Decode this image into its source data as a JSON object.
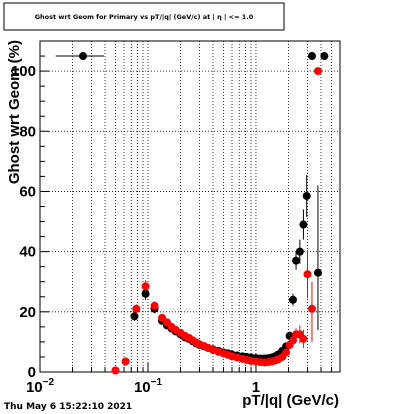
{
  "chart_data": {
    "type": "scatter",
    "title": "Ghost wrt Geom for Primary vs pT/|q| (GeV/c) at | η | <= 1.0",
    "xlabel": "pT/|q| (GeV/c)",
    "ylabel": "Ghost wrt Geom (%)",
    "xscale": "log",
    "xlim": [
      0.01,
      6
    ],
    "ylim": [
      0,
      110
    ],
    "grid": true,
    "x_ticks": [
      {
        "value": 0.01,
        "label": "10",
        "sup": "−2"
      },
      {
        "value": 0.1,
        "label": "10",
        "sup": "−1"
      },
      {
        "value": 1,
        "label": "1",
        "sup": ""
      }
    ],
    "y_ticks": [
      {
        "value": 0,
        "label": "0"
      },
      {
        "value": 20,
        "label": "20"
      },
      {
        "value": 40,
        "label": "40"
      },
      {
        "value": 60,
        "label": "60"
      },
      {
        "value": 80,
        "label": "80"
      },
      {
        "value": 100,
        "label": "100"
      }
    ],
    "series": [
      {
        "color": "#000000",
        "points": [
          {
            "x": 0.025,
            "y": 105,
            "xerr": [
              0.011,
              0.014
            ]
          },
          {
            "x": 0.075,
            "y": 18.5,
            "yerr": 1.5
          },
          {
            "x": 0.095,
            "y": 26,
            "yerr": 2
          },
          {
            "x": 0.115,
            "y": 21,
            "yerr": 1.5
          },
          {
            "x": 0.135,
            "y": 17,
            "yerr": 1
          },
          {
            "x": 0.15,
            "y": 15.5
          },
          {
            "x": 0.165,
            "y": 14.5
          },
          {
            "x": 0.18,
            "y": 13.5
          },
          {
            "x": 0.2,
            "y": 12.5
          },
          {
            "x": 0.22,
            "y": 11.5
          },
          {
            "x": 0.24,
            "y": 11
          },
          {
            "x": 0.26,
            "y": 10.2
          },
          {
            "x": 0.28,
            "y": 9.5
          },
          {
            "x": 0.3,
            "y": 9
          },
          {
            "x": 0.33,
            "y": 8.5
          },
          {
            "x": 0.36,
            "y": 8
          },
          {
            "x": 0.4,
            "y": 7.5
          },
          {
            "x": 0.45,
            "y": 7
          },
          {
            "x": 0.5,
            "y": 6.5
          },
          {
            "x": 0.55,
            "y": 6.2
          },
          {
            "x": 0.6,
            "y": 5.8
          },
          {
            "x": 0.67,
            "y": 5.5
          },
          {
            "x": 0.75,
            "y": 5.2
          },
          {
            "x": 0.82,
            "y": 5
          },
          {
            "x": 0.9,
            "y": 4.8
          },
          {
            "x": 1.0,
            "y": 4.6
          },
          {
            "x": 1.1,
            "y": 4.5
          },
          {
            "x": 1.2,
            "y": 4.5
          },
          {
            "x": 1.3,
            "y": 4.6
          },
          {
            "x": 1.4,
            "y": 4.8
          },
          {
            "x": 1.5,
            "y": 5.2
          },
          {
            "x": 1.6,
            "y": 5.8
          },
          {
            "x": 1.75,
            "y": 7
          },
          {
            "x": 1.9,
            "y": 8.5,
            "yerr": 1
          },
          {
            "x": 2.05,
            "y": 12,
            "yerr": 1.5
          },
          {
            "x": 2.2,
            "y": 24,
            "yerr": 2
          },
          {
            "x": 2.35,
            "y": 37,
            "yerr": 3
          },
          {
            "x": 2.55,
            "y": 40,
            "yerr": 4
          },
          {
            "x": 2.75,
            "y": 49,
            "yerr": 5
          },
          {
            "x": 2.95,
            "y": 58.5,
            "yerr": 7
          },
          {
            "x": 3.3,
            "y": 105
          },
          {
            "x": 3.75,
            "y": 33,
            "yerr": [
              19,
              29
            ]
          },
          {
            "x": 4.3,
            "y": 105
          }
        ]
      },
      {
        "color": "#ff0000",
        "points": [
          {
            "x": 0.05,
            "y": 0.5
          },
          {
            "x": 0.062,
            "y": 3.5
          },
          {
            "x": 0.078,
            "y": 21,
            "yerr": 1.5
          },
          {
            "x": 0.095,
            "y": 28.5,
            "yerr": 2
          },
          {
            "x": 0.115,
            "y": 22,
            "yerr": 1.5
          },
          {
            "x": 0.135,
            "y": 18,
            "yerr": 1
          },
          {
            "x": 0.15,
            "y": 16.5
          },
          {
            "x": 0.165,
            "y": 15
          },
          {
            "x": 0.18,
            "y": 14
          },
          {
            "x": 0.2,
            "y": 13
          },
          {
            "x": 0.22,
            "y": 12
          },
          {
            "x": 0.24,
            "y": 11.3
          },
          {
            "x": 0.26,
            "y": 10.5
          },
          {
            "x": 0.28,
            "y": 9.8
          },
          {
            "x": 0.3,
            "y": 9.2
          },
          {
            "x": 0.33,
            "y": 8.6
          },
          {
            "x": 0.36,
            "y": 8
          },
          {
            "x": 0.4,
            "y": 7.3
          },
          {
            "x": 0.45,
            "y": 6.7
          },
          {
            "x": 0.5,
            "y": 6.2
          },
          {
            "x": 0.55,
            "y": 5.7
          },
          {
            "x": 0.6,
            "y": 5.2
          },
          {
            "x": 0.67,
            "y": 4.8
          },
          {
            "x": 0.75,
            "y": 4.4
          },
          {
            "x": 0.82,
            "y": 4
          },
          {
            "x": 0.9,
            "y": 3.7
          },
          {
            "x": 1.0,
            "y": 3.5
          },
          {
            "x": 1.1,
            "y": 3.3
          },
          {
            "x": 1.2,
            "y": 3.2
          },
          {
            "x": 1.3,
            "y": 3.3
          },
          {
            "x": 1.4,
            "y": 3.5
          },
          {
            "x": 1.5,
            "y": 3.8
          },
          {
            "x": 1.6,
            "y": 4.2
          },
          {
            "x": 1.75,
            "y": 5
          },
          {
            "x": 1.9,
            "y": 6.5,
            "yerr": 1
          },
          {
            "x": 2.05,
            "y": 9,
            "yerr": 1.5
          },
          {
            "x": 2.2,
            "y": 10.5,
            "yerr": 1.5
          },
          {
            "x": 2.35,
            "y": 12.5,
            "yerr": 2
          },
          {
            "x": 2.55,
            "y": 12.5,
            "yerr": 3
          },
          {
            "x": 2.75,
            "y": 11,
            "yerr": 3
          },
          {
            "x": 3.0,
            "y": 32.5,
            "yerr": 8
          },
          {
            "x": 3.3,
            "y": 21,
            "yerr": [
              11,
              9
            ]
          },
          {
            "x": 3.75,
            "y": 100
          }
        ]
      }
    ]
  },
  "footer": {
    "timestamp": "Thu May  6 15:22:10 2021"
  }
}
